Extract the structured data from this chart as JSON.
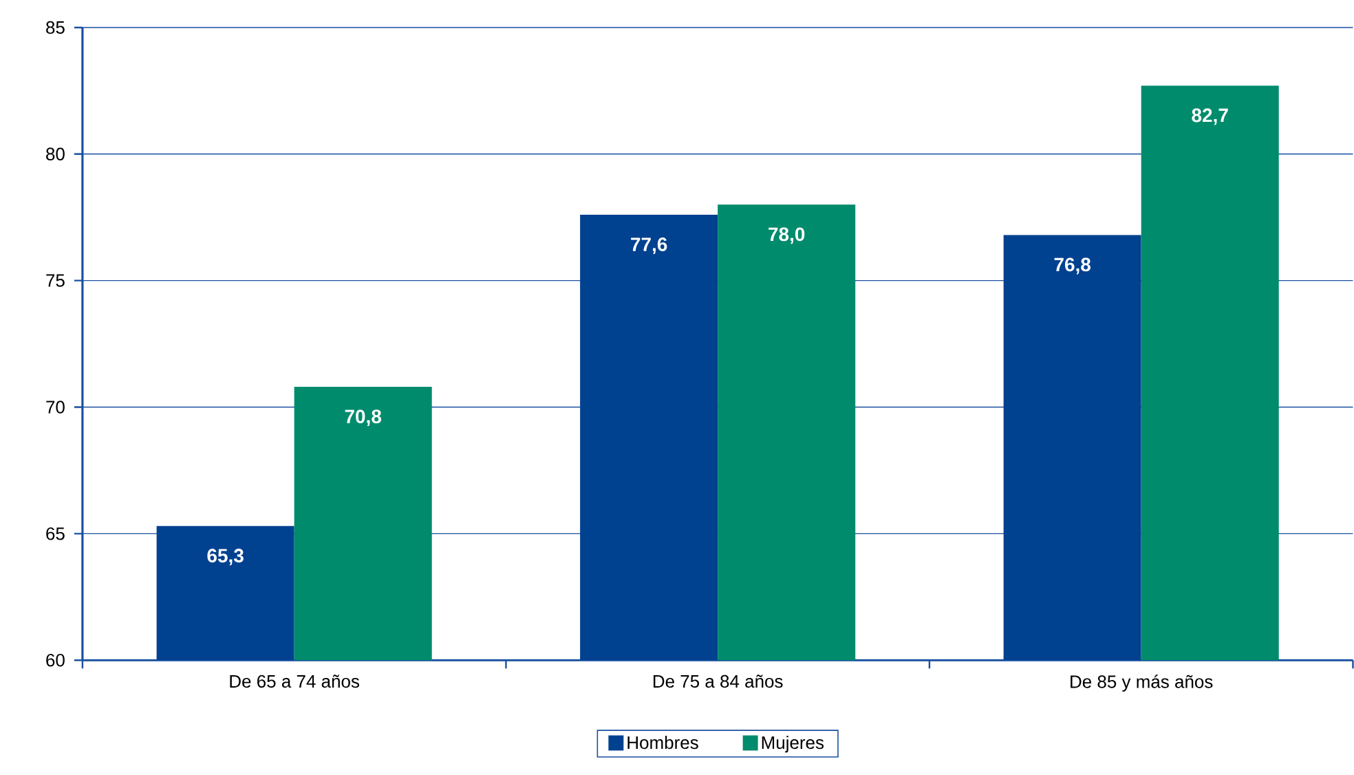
{
  "chart_data": {
    "type": "bar",
    "categories": [
      "De 65 a 74 años",
      "De 75 a 84 años",
      "De 85 y más años"
    ],
    "series": [
      {
        "name": "Hombres",
        "color": "#004190",
        "values": [
          65.3,
          77.6,
          76.8
        ],
        "value_labels": [
          "65,3",
          "77,6",
          "76,8"
        ]
      },
      {
        "name": "Mujeres",
        "color": "#008b6c",
        "values": [
          70.8,
          78.0,
          82.7
        ],
        "value_labels": [
          "70,8",
          "78,0",
          "82,7"
        ]
      }
    ],
    "ylim": [
      60,
      85
    ],
    "yticks": [
      60,
      65,
      70,
      75,
      80,
      85
    ],
    "grid": "y",
    "legend": "bottom"
  }
}
